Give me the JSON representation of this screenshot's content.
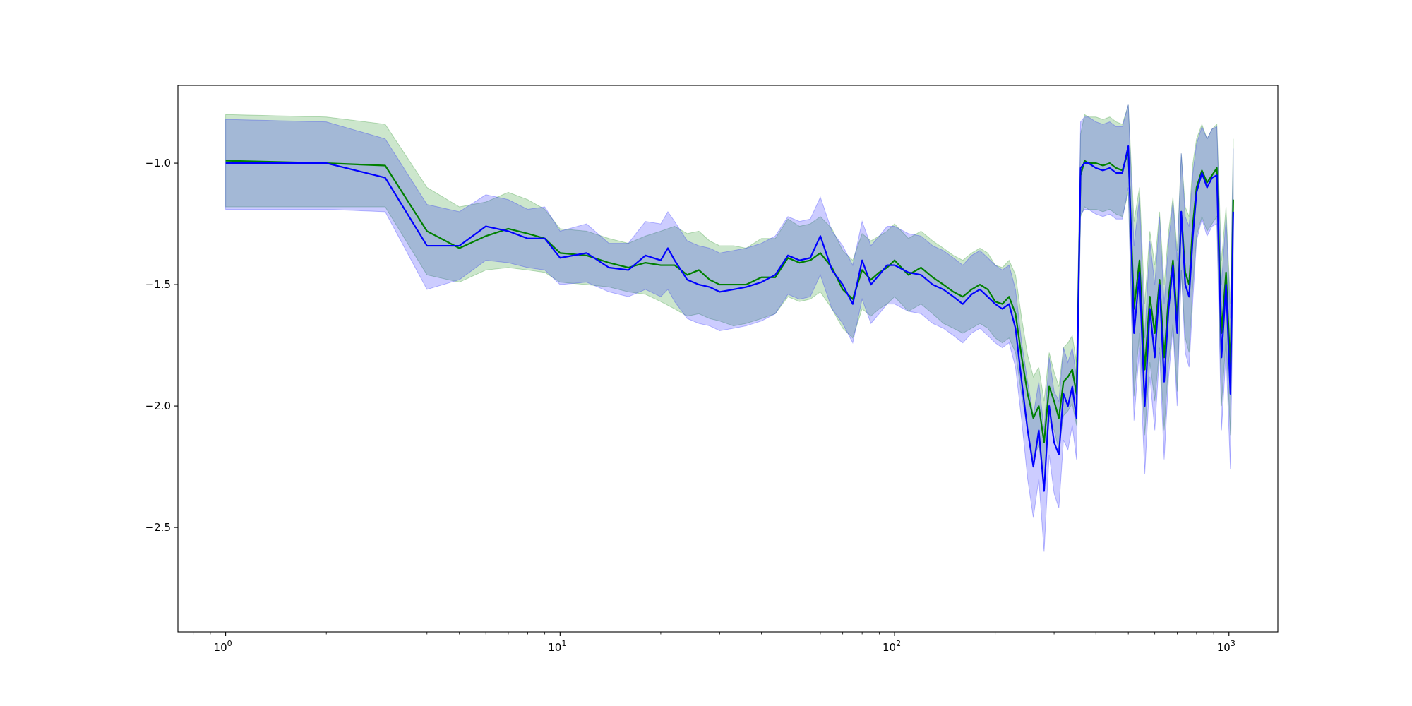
{
  "chart_data": {
    "type": "line",
    "title": "",
    "xlabel": "",
    "ylabel": "",
    "x_scale": "log",
    "xlim": [
      0.72,
      1400
    ],
    "ylim": [
      -2.93,
      -0.68
    ],
    "grid": false,
    "legend": "none",
    "x_major_ticks": [
      1,
      10,
      100,
      1000
    ],
    "x_tick_labels": [
      {
        "base": "10",
        "exp": "0"
      },
      {
        "base": "10",
        "exp": "1"
      },
      {
        "base": "10",
        "exp": "2"
      },
      {
        "base": "10",
        "exp": "3"
      }
    ],
    "y_ticks": [
      -1.0,
      -1.5,
      -2.0,
      -2.5
    ],
    "y_tick_labels": [
      "−1.0",
      "−1.5",
      "−2.0",
      "−2.5"
    ],
    "series": [
      {
        "color": "#008000",
        "band_color": "#008000",
        "band_opacity": 0.2,
        "x": [
          1,
          2,
          3,
          4,
          5,
          6,
          7,
          8,
          9,
          10,
          12,
          14,
          16,
          18,
          20,
          22,
          24,
          26,
          28,
          30,
          33,
          36,
          40,
          44,
          48,
          52,
          56,
          60,
          65,
          70,
          75,
          80,
          85,
          90,
          95,
          100,
          110,
          120,
          130,
          140,
          150,
          160,
          170,
          180,
          190,
          200,
          210,
          220,
          230,
          240,
          250,
          260,
          270,
          280,
          290,
          300,
          310,
          320,
          330,
          340,
          350,
          360,
          370,
          380,
          400,
          420,
          440,
          460,
          480,
          500,
          520,
          540,
          560,
          580,
          600,
          620,
          640,
          660,
          680,
          700,
          720,
          740,
          760,
          780,
          800,
          830,
          860,
          890,
          920,
          950,
          980,
          1010,
          1030
        ],
        "y": [
          -0.99,
          -1.0,
          -1.01,
          -1.28,
          -1.35,
          -1.3,
          -1.27,
          -1.29,
          -1.31,
          -1.37,
          -1.38,
          -1.41,
          -1.43,
          -1.41,
          -1.42,
          -1.42,
          -1.46,
          -1.44,
          -1.48,
          -1.5,
          -1.5,
          -1.5,
          -1.47,
          -1.47,
          -1.39,
          -1.41,
          -1.4,
          -1.37,
          -1.43,
          -1.52,
          -1.56,
          -1.44,
          -1.48,
          -1.45,
          -1.43,
          -1.4,
          -1.46,
          -1.43,
          -1.47,
          -1.5,
          -1.53,
          -1.55,
          -1.52,
          -1.5,
          -1.52,
          -1.57,
          -1.58,
          -1.55,
          -1.62,
          -1.8,
          -1.95,
          -2.05,
          -2.0,
          -2.15,
          -1.92,
          -1.98,
          -2.05,
          -1.9,
          -1.88,
          -1.85,
          -1.95,
          -1.05,
          -0.99,
          -1.0,
          -1.0,
          -1.01,
          -1.0,
          -1.02,
          -1.03,
          -0.95,
          -1.6,
          -1.4,
          -1.85,
          -1.55,
          -1.7,
          -1.48,
          -1.8,
          -1.55,
          -1.4,
          -1.65,
          -1.2,
          -1.45,
          -1.5,
          -1.25,
          -1.1,
          -1.03,
          -1.08,
          -1.05,
          -1.02,
          -1.7,
          -1.45,
          -1.85,
          -1.15
        ],
        "y_low": [
          -1.18,
          -1.18,
          -1.18,
          -1.46,
          -1.49,
          -1.44,
          -1.43,
          -1.44,
          -1.45,
          -1.49,
          -1.5,
          -1.51,
          -1.53,
          -1.54,
          -1.57,
          -1.6,
          -1.63,
          -1.62,
          -1.64,
          -1.65,
          -1.67,
          -1.66,
          -1.64,
          -1.62,
          -1.55,
          -1.57,
          -1.56,
          -1.53,
          -1.6,
          -1.68,
          -1.72,
          -1.6,
          -1.63,
          -1.6,
          -1.58,
          -1.55,
          -1.61,
          -1.58,
          -1.62,
          -1.66,
          -1.68,
          -1.7,
          -1.68,
          -1.66,
          -1.68,
          -1.72,
          -1.74,
          -1.72,
          -1.78,
          -1.96,
          -2.1,
          -2.22,
          -2.16,
          -2.32,
          -2.06,
          -2.1,
          -2.18,
          -2.04,
          -2.02,
          -1.99,
          -2.08,
          -1.22,
          -1.18,
          -1.19,
          -1.19,
          -1.2,
          -1.19,
          -1.21,
          -1.22,
          -1.12,
          -1.96,
          -1.7,
          -2.12,
          -1.82,
          -1.98,
          -1.76,
          -2.1,
          -1.82,
          -1.66,
          -1.94,
          -1.44,
          -1.72,
          -1.78,
          -1.5,
          -1.3,
          -1.22,
          -1.28,
          -1.25,
          -1.22,
          -2.0,
          -1.72,
          -2.12,
          -1.4
        ],
        "y_high": [
          -0.8,
          -0.81,
          -0.84,
          -1.1,
          -1.18,
          -1.16,
          -1.12,
          -1.15,
          -1.19,
          -1.27,
          -1.28,
          -1.31,
          -1.33,
          -1.3,
          -1.28,
          -1.26,
          -1.29,
          -1.28,
          -1.32,
          -1.34,
          -1.34,
          -1.35,
          -1.31,
          -1.31,
          -1.23,
          -1.26,
          -1.25,
          -1.22,
          -1.27,
          -1.36,
          -1.4,
          -1.29,
          -1.32,
          -1.3,
          -1.28,
          -1.25,
          -1.31,
          -1.28,
          -1.32,
          -1.35,
          -1.38,
          -1.4,
          -1.37,
          -1.35,
          -1.37,
          -1.42,
          -1.43,
          -1.4,
          -1.46,
          -1.64,
          -1.79,
          -1.88,
          -1.84,
          -1.98,
          -1.78,
          -1.86,
          -1.92,
          -1.76,
          -1.74,
          -1.71,
          -1.82,
          -0.88,
          -0.8,
          -0.81,
          -0.81,
          -0.82,
          -0.81,
          -0.83,
          -0.84,
          -0.76,
          -1.24,
          -1.1,
          -1.58,
          -1.28,
          -1.42,
          -1.2,
          -1.5,
          -1.28,
          -1.14,
          -1.36,
          -0.96,
          -1.18,
          -1.22,
          -1.0,
          -0.9,
          -0.84,
          -0.9,
          -0.86,
          -0.84,
          -1.4,
          -1.18,
          -1.58,
          -0.9
        ]
      },
      {
        "color": "#0000ff",
        "band_color": "#0000ff",
        "band_opacity": 0.2,
        "x": [
          1,
          2,
          3,
          4,
          5,
          6,
          7,
          8,
          9,
          10,
          12,
          14,
          16,
          18,
          20,
          21,
          22,
          24,
          26,
          28,
          30,
          33,
          36,
          40,
          44,
          48,
          52,
          56,
          60,
          65,
          70,
          75,
          80,
          85,
          90,
          95,
          100,
          110,
          120,
          130,
          140,
          150,
          160,
          170,
          180,
          190,
          200,
          210,
          220,
          230,
          240,
          250,
          260,
          270,
          280,
          290,
          300,
          310,
          320,
          330,
          340,
          350,
          360,
          370,
          380,
          400,
          420,
          440,
          460,
          480,
          500,
          520,
          540,
          560,
          580,
          600,
          620,
          640,
          660,
          680,
          700,
          720,
          740,
          760,
          780,
          800,
          830,
          860,
          890,
          920,
          950,
          980,
          1010,
          1030
        ],
        "y": [
          -1.0,
          -1.0,
          -1.06,
          -1.34,
          -1.34,
          -1.26,
          -1.28,
          -1.31,
          -1.31,
          -1.39,
          -1.37,
          -1.43,
          -1.44,
          -1.38,
          -1.4,
          -1.35,
          -1.4,
          -1.48,
          -1.5,
          -1.51,
          -1.53,
          -1.52,
          -1.51,
          -1.49,
          -1.46,
          -1.38,
          -1.4,
          -1.39,
          -1.3,
          -1.44,
          -1.5,
          -1.58,
          -1.4,
          -1.5,
          -1.46,
          -1.42,
          -1.42,
          -1.45,
          -1.46,
          -1.5,
          -1.52,
          -1.55,
          -1.58,
          -1.54,
          -1.52,
          -1.55,
          -1.58,
          -1.6,
          -1.58,
          -1.68,
          -1.9,
          -2.1,
          -2.25,
          -2.1,
          -2.35,
          -2.0,
          -2.15,
          -2.2,
          -1.95,
          -2.0,
          -1.92,
          -2.05,
          -1.02,
          -1.0,
          -1.0,
          -1.02,
          -1.03,
          -1.02,
          -1.04,
          -1.04,
          -0.93,
          -1.7,
          -1.45,
          -2.0,
          -1.6,
          -1.8,
          -1.5,
          -1.9,
          -1.6,
          -1.42,
          -1.7,
          -1.2,
          -1.5,
          -1.55,
          -1.3,
          -1.12,
          -1.04,
          -1.1,
          -1.06,
          -1.05,
          -1.8,
          -1.5,
          -1.95,
          -1.2
        ],
        "y_low": [
          -1.19,
          -1.19,
          -1.2,
          -1.52,
          -1.48,
          -1.4,
          -1.41,
          -1.43,
          -1.44,
          -1.5,
          -1.49,
          -1.53,
          -1.55,
          -1.52,
          -1.55,
          -1.52,
          -1.57,
          -1.64,
          -1.66,
          -1.67,
          -1.69,
          -1.68,
          -1.67,
          -1.65,
          -1.62,
          -1.54,
          -1.56,
          -1.55,
          -1.46,
          -1.6,
          -1.66,
          -1.74,
          -1.56,
          -1.66,
          -1.62,
          -1.58,
          -1.58,
          -1.61,
          -1.62,
          -1.66,
          -1.68,
          -1.71,
          -1.74,
          -1.7,
          -1.68,
          -1.71,
          -1.74,
          -1.76,
          -1.74,
          -1.84,
          -2.06,
          -2.3,
          -2.46,
          -2.3,
          -2.6,
          -2.2,
          -2.36,
          -2.42,
          -2.14,
          -2.18,
          -2.08,
          -2.22,
          -1.21,
          -1.19,
          -1.19,
          -1.21,
          -1.22,
          -1.21,
          -1.23,
          -1.23,
          -1.1,
          -2.06,
          -1.76,
          -2.28,
          -1.88,
          -2.1,
          -1.78,
          -2.22,
          -1.88,
          -1.68,
          -2.0,
          -1.44,
          -1.78,
          -1.84,
          -1.56,
          -1.32,
          -1.23,
          -1.3,
          -1.26,
          -1.25,
          -2.1,
          -1.78,
          -2.26,
          -1.46
        ],
        "y_high": [
          -0.82,
          -0.83,
          -0.9,
          -1.17,
          -1.2,
          -1.13,
          -1.15,
          -1.19,
          -1.18,
          -1.28,
          -1.25,
          -1.33,
          -1.33,
          -1.24,
          -1.25,
          -1.2,
          -1.24,
          -1.32,
          -1.34,
          -1.35,
          -1.37,
          -1.36,
          -1.35,
          -1.33,
          -1.3,
          -1.22,
          -1.24,
          -1.23,
          -1.14,
          -1.28,
          -1.34,
          -1.42,
          -1.24,
          -1.34,
          -1.3,
          -1.26,
          -1.26,
          -1.29,
          -1.3,
          -1.34,
          -1.36,
          -1.39,
          -1.42,
          -1.38,
          -1.36,
          -1.39,
          -1.42,
          -1.44,
          -1.42,
          -1.52,
          -1.74,
          -1.9,
          -2.04,
          -1.9,
          -2.1,
          -1.8,
          -1.94,
          -1.98,
          -1.76,
          -1.82,
          -1.76,
          -1.88,
          -0.83,
          -0.81,
          -0.81,
          -0.83,
          -0.84,
          -0.83,
          -0.85,
          -0.85,
          -0.76,
          -1.34,
          -1.14,
          -1.72,
          -1.32,
          -1.5,
          -1.22,
          -1.58,
          -1.32,
          -1.16,
          -1.4,
          -0.96,
          -1.22,
          -1.26,
          -1.04,
          -0.92,
          -0.85,
          -0.9,
          -0.86,
          -0.85,
          -1.5,
          -1.22,
          -1.64,
          -0.94
        ]
      }
    ]
  }
}
